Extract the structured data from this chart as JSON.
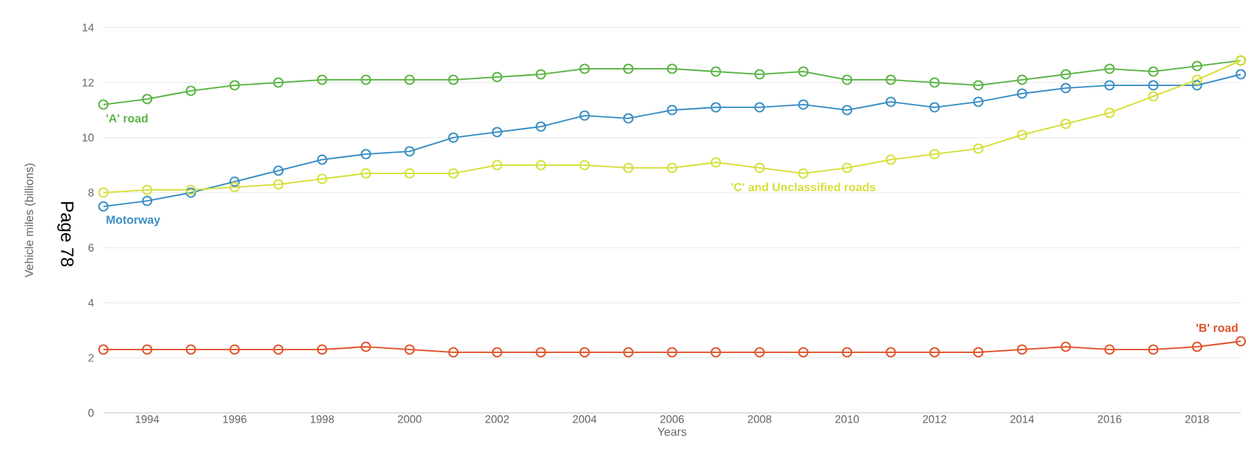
{
  "chart_data": {
    "type": "line",
    "xlabel": "Years",
    "ylabel": "Vehicle miles (billions)",
    "x": [
      1993,
      1994,
      1995,
      1996,
      1997,
      1998,
      1999,
      2000,
      2001,
      2002,
      2003,
      2004,
      2005,
      2006,
      2007,
      2008,
      2009,
      2010,
      2011,
      2012,
      2013,
      2014,
      2015,
      2016,
      2017,
      2018,
      2019
    ],
    "series": [
      {
        "name": "'A' road",
        "color": "#5bb445",
        "values": [
          11.2,
          11.4,
          11.7,
          11.9,
          12.0,
          12.1,
          12.1,
          12.1,
          12.1,
          12.2,
          12.3,
          12.5,
          12.5,
          12.5,
          12.4,
          12.3,
          12.4,
          12.1,
          12.1,
          12.0,
          11.9,
          12.1,
          12.3,
          12.5,
          12.4,
          12.6,
          12.8
        ]
      },
      {
        "name": "Motorway",
        "color": "#3a8fc4",
        "values": [
          7.5,
          7.7,
          8.0,
          8.4,
          8.8,
          9.2,
          9.4,
          9.5,
          10.0,
          10.2,
          10.4,
          10.8,
          10.7,
          11.0,
          11.1,
          11.1,
          11.2,
          11.0,
          11.3,
          11.1,
          11.3,
          11.6,
          11.8,
          11.9,
          11.9,
          11.9,
          12.3
        ]
      },
      {
        "name": "'C' and Unclassified roads",
        "color": "#d6df3a",
        "values": [
          8.0,
          8.1,
          8.1,
          8.2,
          8.3,
          8.5,
          8.7,
          8.7,
          8.7,
          9.0,
          9.0,
          9.0,
          8.9,
          8.9,
          9.1,
          8.9,
          8.7,
          8.9,
          9.2,
          9.4,
          9.6,
          10.1,
          10.5,
          10.9,
          11.5,
          12.1,
          12.8
        ]
      },
      {
        "name": "'B' road",
        "color": "#e0532c",
        "values": [
          2.3,
          2.3,
          2.3,
          2.3,
          2.3,
          2.3,
          2.4,
          2.3,
          2.2,
          2.2,
          2.2,
          2.2,
          2.2,
          2.2,
          2.2,
          2.2,
          2.2,
          2.2,
          2.2,
          2.2,
          2.2,
          2.3,
          2.4,
          2.3,
          2.3,
          2.4,
          2.6
        ]
      }
    ],
    "xlim": [
      1993,
      2019
    ],
    "xticks": [
      1994,
      1996,
      1998,
      2000,
      2002,
      2004,
      2006,
      2008,
      2010,
      2012,
      2014,
      2016,
      2018
    ],
    "ylim": [
      0,
      14
    ],
    "yticks": [
      0,
      2,
      4,
      6,
      8,
      10,
      12,
      14
    ],
    "grid": "y",
    "legend": false,
    "marker": "circle",
    "line_style": "solid",
    "annotations": [
      "Page 78"
    ]
  }
}
